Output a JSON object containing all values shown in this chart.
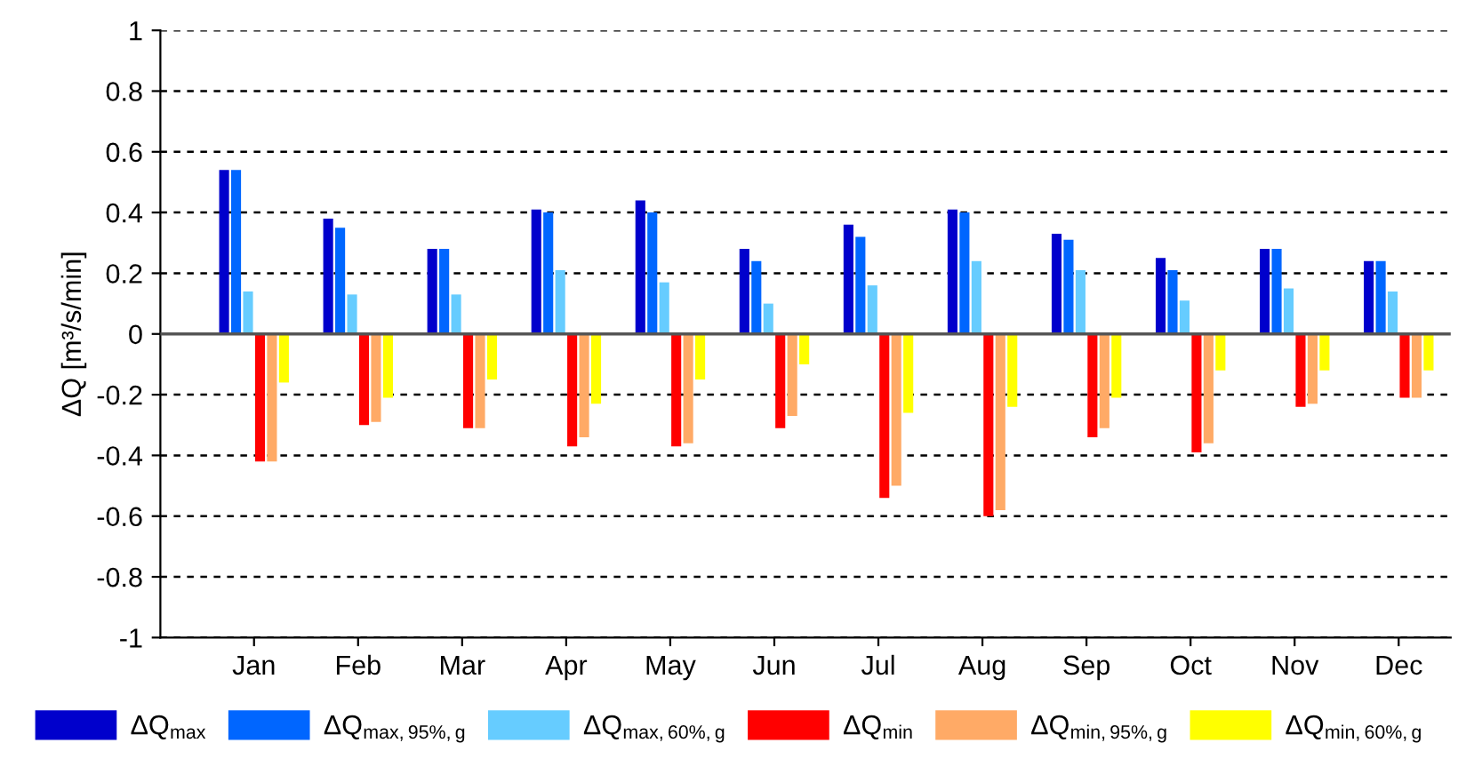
{
  "chart_data": {
    "type": "bar",
    "ylabel": "ΔQ [m³/s/min]",
    "categories": [
      "Jan",
      "Feb",
      "Mar",
      "Apr",
      "May",
      "Jun",
      "Jul",
      "Aug",
      "Sep",
      "Oct",
      "Nov",
      "Dec"
    ],
    "series": [
      {
        "name": "ΔQ$_{max}$",
        "color": "#0000cc",
        "values": [
          0.54,
          0.38,
          0.28,
          0.41,
          0.44,
          0.28,
          0.36,
          0.41,
          0.33,
          0.25,
          0.28,
          0.24
        ]
      },
      {
        "name": "ΔQ$_{max,95%,g}$",
        "color": "#0066ff",
        "values": [
          0.54,
          0.35,
          0.28,
          0.4,
          0.4,
          0.24,
          0.32,
          0.4,
          0.31,
          0.21,
          0.28,
          0.24
        ]
      },
      {
        "name": "ΔQ$_{max,60%,g}$",
        "color": "#66ccff",
        "values": [
          0.14,
          0.13,
          0.13,
          0.21,
          0.17,
          0.1,
          0.16,
          0.24,
          0.21,
          0.11,
          0.15,
          0.14
        ]
      },
      {
        "name": "ΔQ$_{min}$",
        "color": "#ff0000",
        "values": [
          -0.42,
          -0.3,
          -0.31,
          -0.37,
          -0.37,
          -0.31,
          -0.54,
          -0.6,
          -0.34,
          -0.39,
          -0.24,
          -0.21
        ]
      },
      {
        "name": "ΔQ$_{min,95%,g}$",
        "color": "#ffaa66",
        "values": [
          -0.42,
          -0.29,
          -0.31,
          -0.34,
          -0.36,
          -0.27,
          -0.5,
          -0.58,
          -0.31,
          -0.36,
          -0.23,
          -0.21
        ]
      },
      {
        "name": "ΔQ$_{min,60%,g}$",
        "color": "#ffff00",
        "values": [
          -0.16,
          -0.21,
          -0.15,
          -0.23,
          -0.15,
          -0.1,
          -0.26,
          -0.24,
          -0.21,
          -0.12,
          -0.12,
          -0.12
        ]
      }
    ],
    "ylim": [
      -1,
      1
    ],
    "yticks": [
      -1,
      -0.8,
      -0.6,
      -0.4,
      -0.2,
      0,
      0.2,
      0.4,
      0.6,
      0.8,
      1
    ],
    "grid": "y",
    "legend": "bottom"
  }
}
